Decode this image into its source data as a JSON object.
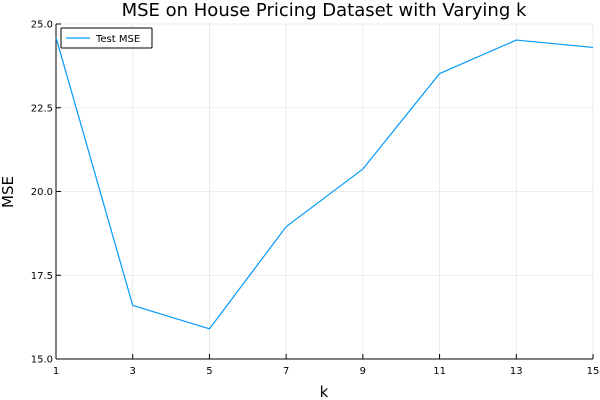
{
  "chart_data": {
    "type": "line",
    "title": "MSE on House Pricing Dataset with Varying k",
    "xlabel": "k",
    "ylabel": "MSE",
    "xlim": [
      1,
      15
    ],
    "ylim": [
      15.0,
      25.0
    ],
    "xticks": [
      1,
      3,
      5,
      7,
      9,
      11,
      13,
      15
    ],
    "xtick_labels": [
      "1",
      "3",
      "5",
      "7",
      "9",
      "11",
      "13",
      "15"
    ],
    "yticks": [
      15.0,
      17.5,
      20.0,
      22.5,
      25.0
    ],
    "ytick_labels": [
      "15.0",
      "17.5",
      "20.0",
      "22.5",
      "25.0"
    ],
    "grid": true,
    "legend_position": "top-left",
    "series": [
      {
        "name": "Test MSE",
        "color": "#009AFA",
        "x": [
          1,
          3,
          5,
          7,
          9,
          11,
          13,
          15
        ],
        "y": [
          24.6,
          16.6,
          15.9,
          18.95,
          20.67,
          23.52,
          24.52,
          24.3
        ]
      }
    ]
  }
}
